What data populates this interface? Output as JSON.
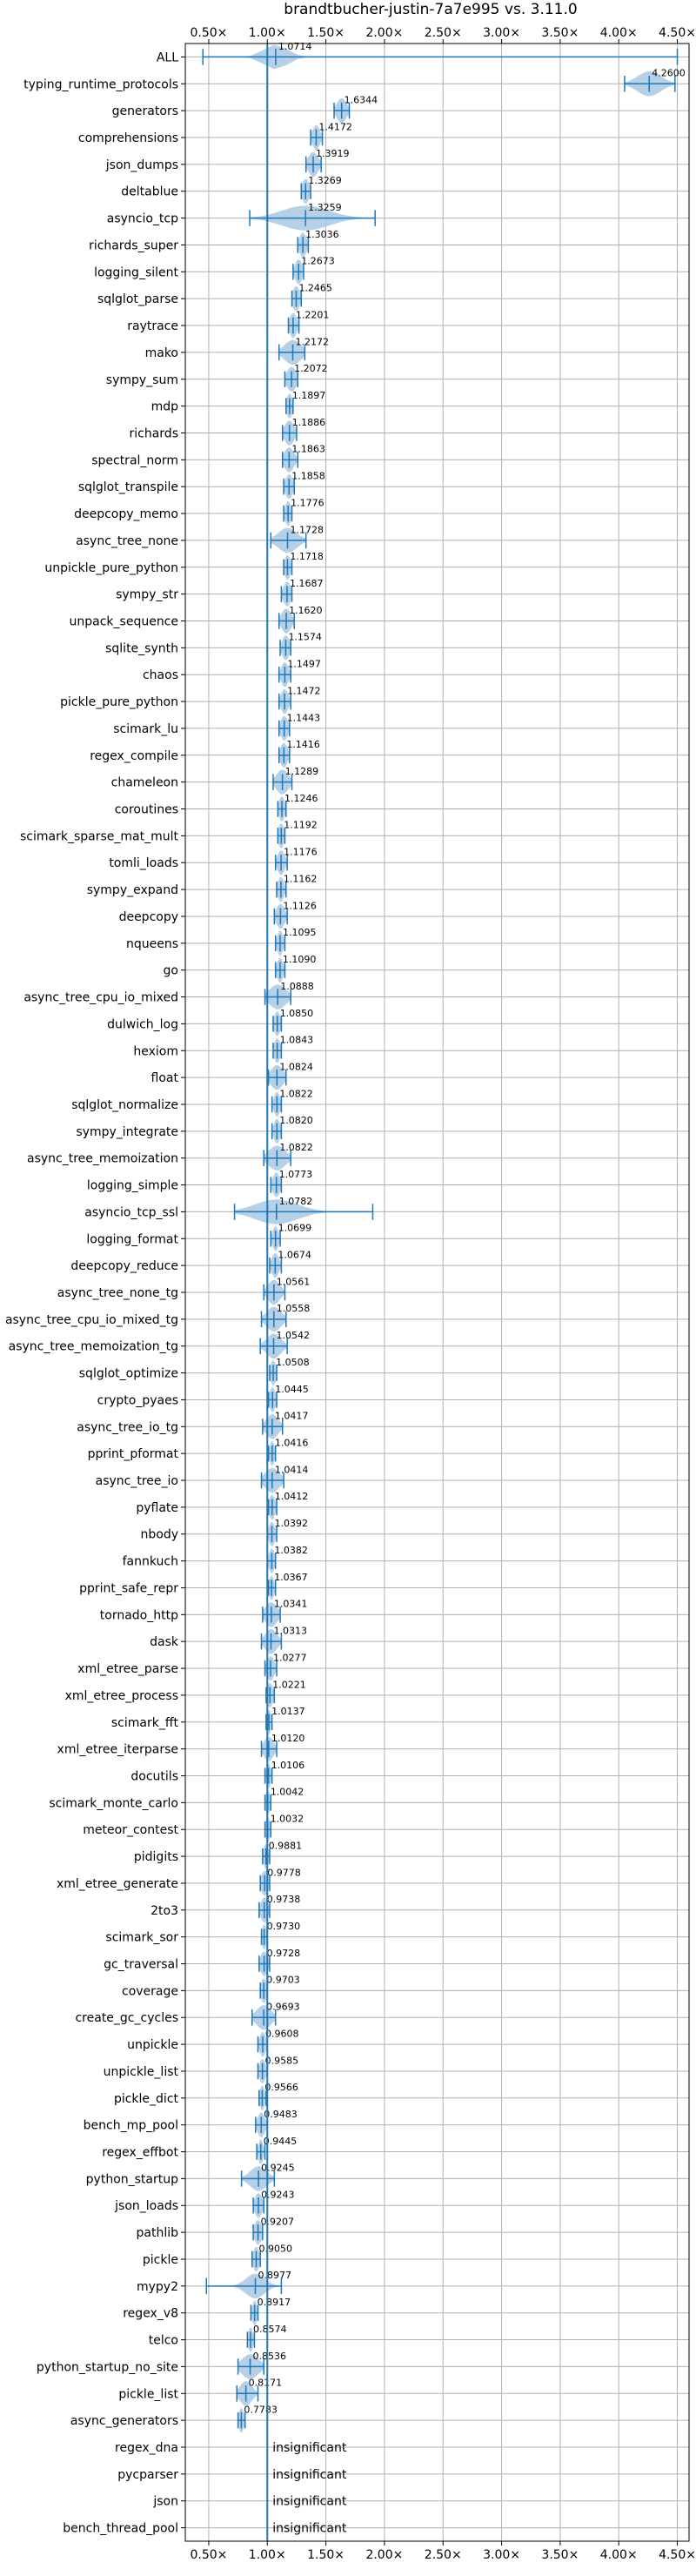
{
  "chart_data": {
    "type": "violin",
    "title": "brandtbucher-justin-7a7e995 vs. 3.11.0",
    "xlim": [
      0.3,
      4.6
    ],
    "xticks": [
      {
        "v": 0.5,
        "label": "0.50×"
      },
      {
        "v": 1.0,
        "label": "1.00×"
      },
      {
        "v": 1.5,
        "label": "1.50×"
      },
      {
        "v": 2.0,
        "label": "2.00×"
      },
      {
        "v": 2.5,
        "label": "2.50×"
      },
      {
        "v": 3.0,
        "label": "3.00×"
      },
      {
        "v": 3.5,
        "label": "3.50×"
      },
      {
        "v": 4.0,
        "label": "4.00×"
      },
      {
        "v": 4.5,
        "label": "4.50×"
      }
    ],
    "reference_line": 1.0,
    "colors": {
      "line": "#1f77b4",
      "violin": "#a9c8e4",
      "grid": "#b0b0b0"
    },
    "insignificant_label": "insignificant",
    "benchmarks": [
      {
        "name": "ALL",
        "mean": 1.0714,
        "label": "1.0714",
        "min": 0.45,
        "max": 4.5,
        "spread": 0.1
      },
      {
        "name": "typing_runtime_protocols",
        "mean": 4.26,
        "label": "4.2600",
        "min": 4.05,
        "max": 4.48,
        "spread": 0.1
      },
      {
        "name": "generators",
        "mean": 1.6344,
        "label": "1.6344",
        "min": 1.57,
        "max": 1.7,
        "spread": 0.04
      },
      {
        "name": "comprehensions",
        "mean": 1.4172,
        "label": "1.4172",
        "min": 1.37,
        "max": 1.47,
        "spread": 0.03
      },
      {
        "name": "json_dumps",
        "mean": 1.3919,
        "label": "1.3919",
        "min": 1.33,
        "max": 1.46,
        "spread": 0.04
      },
      {
        "name": "deltablue",
        "mean": 1.3269,
        "label": "1.3269",
        "min": 1.29,
        "max": 1.37,
        "spread": 0.03
      },
      {
        "name": "asyncio_tcp",
        "mean": 1.3259,
        "label": "1.3259",
        "min": 0.85,
        "max": 1.92,
        "spread": 0.2
      },
      {
        "name": "richards_super",
        "mean": 1.3036,
        "label": "1.3036",
        "min": 1.26,
        "max": 1.35,
        "spread": 0.03
      },
      {
        "name": "logging_silent",
        "mean": 1.2673,
        "label": "1.2673",
        "min": 1.22,
        "max": 1.31,
        "spread": 0.03
      },
      {
        "name": "sqlglot_parse",
        "mean": 1.2465,
        "label": "1.2465",
        "min": 1.21,
        "max": 1.29,
        "spread": 0.03
      },
      {
        "name": "raytrace",
        "mean": 1.2201,
        "label": "1.2201",
        "min": 1.18,
        "max": 1.27,
        "spread": 0.03
      },
      {
        "name": "mako",
        "mean": 1.2172,
        "label": "1.2172",
        "min": 1.1,
        "max": 1.32,
        "spread": 0.07
      },
      {
        "name": "sympy_sum",
        "mean": 1.2072,
        "label": "1.2072",
        "min": 1.15,
        "max": 1.26,
        "spread": 0.04
      },
      {
        "name": "mdp",
        "mean": 1.1897,
        "label": "1.1897",
        "min": 1.16,
        "max": 1.22,
        "spread": 0.025
      },
      {
        "name": "richards",
        "mean": 1.1886,
        "label": "1.1886",
        "min": 1.13,
        "max": 1.25,
        "spread": 0.04
      },
      {
        "name": "spectral_norm",
        "mean": 1.1863,
        "label": "1.1863",
        "min": 1.13,
        "max": 1.26,
        "spread": 0.04
      },
      {
        "name": "sqlglot_transpile",
        "mean": 1.1858,
        "label": "1.1858",
        "min": 1.14,
        "max": 1.23,
        "spread": 0.03
      },
      {
        "name": "deepcopy_memo",
        "mean": 1.1776,
        "label": "1.1776",
        "min": 1.14,
        "max": 1.21,
        "spread": 0.025
      },
      {
        "name": "async_tree_none",
        "mean": 1.1728,
        "label": "1.1728",
        "min": 1.03,
        "max": 1.33,
        "spread": 0.08
      },
      {
        "name": "unpickle_pure_python",
        "mean": 1.1718,
        "label": "1.1718",
        "min": 1.14,
        "max": 1.21,
        "spread": 0.025
      },
      {
        "name": "sympy_str",
        "mean": 1.1687,
        "label": "1.1687",
        "min": 1.12,
        "max": 1.21,
        "spread": 0.03
      },
      {
        "name": "unpack_sequence",
        "mean": 1.162,
        "label": "1.1620",
        "min": 1.1,
        "max": 1.23,
        "spread": 0.04
      },
      {
        "name": "sqlite_synth",
        "mean": 1.1574,
        "label": "1.1574",
        "min": 1.11,
        "max": 1.2,
        "spread": 0.03
      },
      {
        "name": "chaos",
        "mean": 1.1497,
        "label": "1.1497",
        "min": 1.1,
        "max": 1.2,
        "spread": 0.03
      },
      {
        "name": "pickle_pure_python",
        "mean": 1.1472,
        "label": "1.1472",
        "min": 1.1,
        "max": 1.2,
        "spread": 0.03
      },
      {
        "name": "scimark_lu",
        "mean": 1.1443,
        "label": "1.1443",
        "min": 1.1,
        "max": 1.19,
        "spread": 0.03
      },
      {
        "name": "regex_compile",
        "mean": 1.1416,
        "label": "1.1416",
        "min": 1.1,
        "max": 1.19,
        "spread": 0.03
      },
      {
        "name": "chameleon",
        "mean": 1.1289,
        "label": "1.1289",
        "min": 1.05,
        "max": 1.21,
        "spread": 0.05
      },
      {
        "name": "coroutines",
        "mean": 1.1246,
        "label": "1.1246",
        "min": 1.09,
        "max": 1.16,
        "spread": 0.025
      },
      {
        "name": "scimark_sparse_mat_mult",
        "mean": 1.1192,
        "label": "1.1192",
        "min": 1.09,
        "max": 1.15,
        "spread": 0.025
      },
      {
        "name": "tomli_loads",
        "mean": 1.1176,
        "label": "1.1176",
        "min": 1.07,
        "max": 1.17,
        "spread": 0.03
      },
      {
        "name": "sympy_expand",
        "mean": 1.1162,
        "label": "1.1162",
        "min": 1.08,
        "max": 1.16,
        "spread": 0.025
      },
      {
        "name": "deepcopy",
        "mean": 1.1126,
        "label": "1.1126",
        "min": 1.06,
        "max": 1.17,
        "spread": 0.035
      },
      {
        "name": "nqueens",
        "mean": 1.1095,
        "label": "1.1095",
        "min": 1.07,
        "max": 1.15,
        "spread": 0.025
      },
      {
        "name": "go",
        "mean": 1.109,
        "label": "1.1090",
        "min": 1.07,
        "max": 1.15,
        "spread": 0.025
      },
      {
        "name": "async_tree_cpu_io_mixed",
        "mean": 1.0888,
        "label": "1.0888",
        "min": 0.98,
        "max": 1.2,
        "spread": 0.07
      },
      {
        "name": "dulwich_log",
        "mean": 1.085,
        "label": "1.0850",
        "min": 1.05,
        "max": 1.12,
        "spread": 0.025
      },
      {
        "name": "hexiom",
        "mean": 1.0843,
        "label": "1.0843",
        "min": 1.05,
        "max": 1.12,
        "spread": 0.025
      },
      {
        "name": "float",
        "mean": 1.0824,
        "label": "1.0824",
        "min": 1.01,
        "max": 1.16,
        "spread": 0.05
      },
      {
        "name": "sqlglot_normalize",
        "mean": 1.0822,
        "label": "1.0822",
        "min": 1.04,
        "max": 1.12,
        "spread": 0.025
      },
      {
        "name": "sympy_integrate",
        "mean": 1.082,
        "label": "1.0820",
        "min": 1.04,
        "max": 1.12,
        "spread": 0.025
      },
      {
        "name": "async_tree_memoization",
        "mean": 1.0822,
        "label": "1.0822",
        "min": 0.97,
        "max": 1.2,
        "spread": 0.07
      },
      {
        "name": "logging_simple",
        "mean": 1.0773,
        "label": "1.0773",
        "min": 1.03,
        "max": 1.12,
        "spread": 0.03
      },
      {
        "name": "asyncio_tcp_ssl",
        "mean": 1.0782,
        "label": "1.0782",
        "min": 0.72,
        "max": 1.9,
        "spread": 0.18
      },
      {
        "name": "logging_format",
        "mean": 1.0699,
        "label": "1.0699",
        "min": 1.03,
        "max": 1.11,
        "spread": 0.025
      },
      {
        "name": "deepcopy_reduce",
        "mean": 1.0674,
        "label": "1.0674",
        "min": 1.02,
        "max": 1.12,
        "spread": 0.03
      },
      {
        "name": "async_tree_none_tg",
        "mean": 1.0561,
        "label": "1.0561",
        "min": 0.97,
        "max": 1.15,
        "spread": 0.05
      },
      {
        "name": "async_tree_cpu_io_mixed_tg",
        "mean": 1.0558,
        "label": "1.0558",
        "min": 0.95,
        "max": 1.16,
        "spread": 0.06
      },
      {
        "name": "async_tree_memoization_tg",
        "mean": 1.0542,
        "label": "1.0542",
        "min": 0.94,
        "max": 1.17,
        "spread": 0.06
      },
      {
        "name": "sqlglot_optimize",
        "mean": 1.0508,
        "label": "1.0508",
        "min": 1.02,
        "max": 1.08,
        "spread": 0.025
      },
      {
        "name": "crypto_pyaes",
        "mean": 1.0445,
        "label": "1.0445",
        "min": 1.01,
        "max": 1.08,
        "spread": 0.025
      },
      {
        "name": "async_tree_io_tg",
        "mean": 1.0417,
        "label": "1.0417",
        "min": 0.96,
        "max": 1.13,
        "spread": 0.05
      },
      {
        "name": "pprint_pformat",
        "mean": 1.0416,
        "label": "1.0416",
        "min": 1.01,
        "max": 1.07,
        "spread": 0.02
      },
      {
        "name": "async_tree_io",
        "mean": 1.0414,
        "label": "1.0414",
        "min": 0.95,
        "max": 1.14,
        "spread": 0.06
      },
      {
        "name": "pyflate",
        "mean": 1.0412,
        "label": "1.0412",
        "min": 1.01,
        "max": 1.08,
        "spread": 0.025
      },
      {
        "name": "nbody",
        "mean": 1.0392,
        "label": "1.0392",
        "min": 1.0,
        "max": 1.08,
        "spread": 0.025
      },
      {
        "name": "fannkuch",
        "mean": 1.0382,
        "label": "1.0382",
        "min": 1.0,
        "max": 1.07,
        "spread": 0.025
      },
      {
        "name": "pprint_safe_repr",
        "mean": 1.0367,
        "label": "1.0367",
        "min": 1.01,
        "max": 1.07,
        "spread": 0.02
      },
      {
        "name": "tornado_http",
        "mean": 1.0341,
        "label": "1.0341",
        "min": 0.96,
        "max": 1.11,
        "spread": 0.05
      },
      {
        "name": "dask",
        "mean": 1.0313,
        "label": "1.0313",
        "min": 0.95,
        "max": 1.12,
        "spread": 0.05
      },
      {
        "name": "xml_etree_parse",
        "mean": 1.0277,
        "label": "1.0277",
        "min": 0.98,
        "max": 1.08,
        "spread": 0.03
      },
      {
        "name": "xml_etree_process",
        "mean": 1.0221,
        "label": "1.0221",
        "min": 0.99,
        "max": 1.06,
        "spread": 0.025
      },
      {
        "name": "scimark_fft",
        "mean": 1.0137,
        "label": "1.0137",
        "min": 0.99,
        "max": 1.04,
        "spread": 0.02
      },
      {
        "name": "xml_etree_iterparse",
        "mean": 1.012,
        "label": "1.0120",
        "min": 0.95,
        "max": 1.08,
        "spread": 0.04
      },
      {
        "name": "docutils",
        "mean": 1.0106,
        "label": "1.0106",
        "min": 0.98,
        "max": 1.04,
        "spread": 0.02
      },
      {
        "name": "scimark_monte_carlo",
        "mean": 1.0042,
        "label": "1.0042",
        "min": 0.98,
        "max": 1.03,
        "spread": 0.02
      },
      {
        "name": "meteor_contest",
        "mean": 1.0032,
        "label": "1.0032",
        "min": 0.98,
        "max": 1.03,
        "spread": 0.02
      },
      {
        "name": "pidigits",
        "mean": 0.9881,
        "label": "0.9881",
        "min": 0.96,
        "max": 1.02,
        "spread": 0.02
      },
      {
        "name": "xml_etree_generate",
        "mean": 0.9778,
        "label": "0.9778",
        "min": 0.94,
        "max": 1.02,
        "spread": 0.03
      },
      {
        "name": "2to3",
        "mean": 0.9738,
        "label": "0.9738",
        "min": 0.93,
        "max": 1.02,
        "spread": 0.03
      },
      {
        "name": "scimark_sor",
        "mean": 0.973,
        "label": "0.9730",
        "min": 0.95,
        "max": 1.0,
        "spread": 0.02
      },
      {
        "name": "gc_traversal",
        "mean": 0.9728,
        "label": "0.9728",
        "min": 0.93,
        "max": 1.02,
        "spread": 0.03
      },
      {
        "name": "coverage",
        "mean": 0.9703,
        "label": "0.9703",
        "min": 0.94,
        "max": 1.0,
        "spread": 0.025
      },
      {
        "name": "create_gc_cycles",
        "mean": 0.9693,
        "label": "0.9693",
        "min": 0.87,
        "max": 1.07,
        "spread": 0.06
      },
      {
        "name": "unpickle",
        "mean": 0.9608,
        "label": "0.9608",
        "min": 0.92,
        "max": 1.0,
        "spread": 0.025
      },
      {
        "name": "unpickle_list",
        "mean": 0.9585,
        "label": "0.9585",
        "min": 0.92,
        "max": 1.0,
        "spread": 0.025
      },
      {
        "name": "pickle_dict",
        "mean": 0.9566,
        "label": "0.9566",
        "min": 0.93,
        "max": 0.99,
        "spread": 0.02
      },
      {
        "name": "bench_mp_pool",
        "mean": 0.9483,
        "label": "0.9483",
        "min": 0.9,
        "max": 1.0,
        "spread": 0.03
      },
      {
        "name": "regex_effbot",
        "mean": 0.9445,
        "label": "0.9445",
        "min": 0.91,
        "max": 0.98,
        "spread": 0.02
      },
      {
        "name": "python_startup",
        "mean": 0.9245,
        "label": "0.9245",
        "min": 0.78,
        "max": 1.06,
        "spread": 0.07
      },
      {
        "name": "json_loads",
        "mean": 0.9243,
        "label": "0.9243",
        "min": 0.88,
        "max": 0.97,
        "spread": 0.03
      },
      {
        "name": "pathlib",
        "mean": 0.9207,
        "label": "0.9207",
        "min": 0.88,
        "max": 0.96,
        "spread": 0.03
      },
      {
        "name": "pickle",
        "mean": 0.905,
        "label": "0.9050",
        "min": 0.87,
        "max": 0.94,
        "spread": 0.025
      },
      {
        "name": "mypy2",
        "mean": 0.8977,
        "label": "0.8977",
        "min": 0.48,
        "max": 1.12,
        "spread": 0.08
      },
      {
        "name": "regex_v8",
        "mean": 0.8917,
        "label": "0.8917",
        "min": 0.86,
        "max": 0.92,
        "spread": 0.02
      },
      {
        "name": "telco",
        "mean": 0.8574,
        "label": "0.8574",
        "min": 0.83,
        "max": 0.89,
        "spread": 0.02
      },
      {
        "name": "python_startup_no_site",
        "mean": 0.8536,
        "label": "0.8536",
        "min": 0.75,
        "max": 0.97,
        "spread": 0.07
      },
      {
        "name": "pickle_list",
        "mean": 0.8171,
        "label": "0.8171",
        "min": 0.74,
        "max": 0.92,
        "spread": 0.05
      },
      {
        "name": "async_generators",
        "mean": 0.7783,
        "label": "0.7783",
        "min": 0.75,
        "max": 0.81,
        "spread": 0.02
      },
      {
        "name": "regex_dna",
        "insignificant": true
      },
      {
        "name": "pycparser",
        "insignificant": true
      },
      {
        "name": "json",
        "insignificant": true
      },
      {
        "name": "bench_thread_pool",
        "insignificant": true
      }
    ]
  }
}
